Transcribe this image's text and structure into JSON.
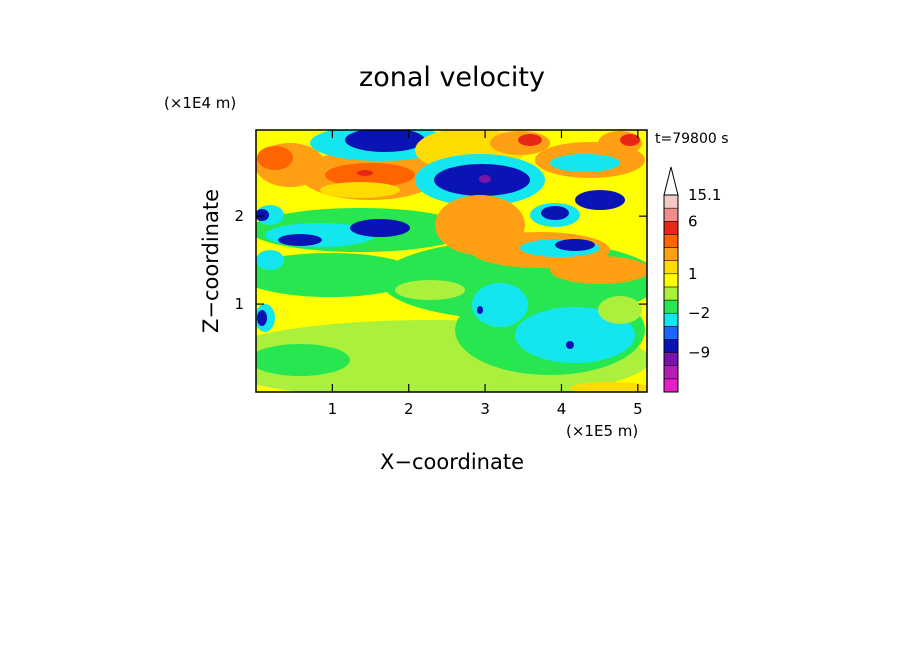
{
  "chart_data": {
    "type": "heatmap",
    "title": "zonal velocity",
    "xlabel": "X−coordinate",
    "ylabel": "Z−coordinate",
    "x_unit": "(×1E5 m)",
    "y_unit": "(×1E4 m)",
    "time_label": "t=79800 s",
    "xlim": [
      0,
      5.12
    ],
    "ylim": [
      0,
      2.98
    ],
    "x_ticks": [
      1,
      2,
      3,
      4,
      5
    ],
    "y_ticks": [
      1,
      2
    ],
    "x_tick_labels": [
      "1",
      "2",
      "3",
      "4",
      "5"
    ],
    "y_tick_labels": [
      "1",
      "2"
    ],
    "colorbar": {
      "bands": [
        "#e81ec8",
        "#b41eb4",
        "#7814aa",
        "#0a14b4",
        "#1e64ff",
        "#14e6f0",
        "#28e650",
        "#aaf03c",
        "#ffff00",
        "#ffdc00",
        "#ffa014",
        "#ff6400",
        "#e62814",
        "#f08c8c",
        "#f5c8c8"
      ],
      "tick_labels": [
        "-9",
        "-2",
        "1",
        "6",
        "15.1"
      ],
      "tick_band_index": [
        3,
        6,
        9,
        13,
        15
      ],
      "extends_max": true
    }
  }
}
